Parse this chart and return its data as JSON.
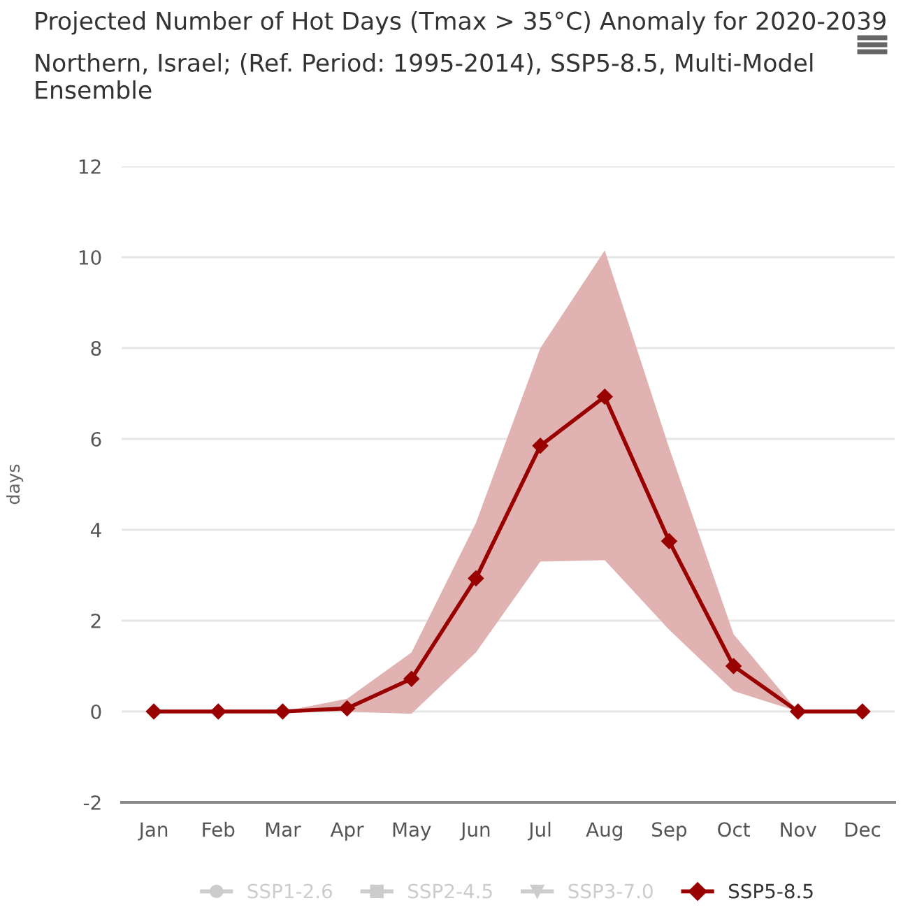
{
  "chart_data": {
    "type": "line",
    "title": "Projected Number of Hot Days (Tmax > 35°C) Anomaly for 2020-2039",
    "subtitle": "Northern, Israel; (Ref. Period: 1995-2014), SSP5-8.5, Multi-Model Ensemble",
    "ylabel": "days",
    "categories": [
      "Jan",
      "Feb",
      "Mar",
      "Apr",
      "May",
      "Jun",
      "Jul",
      "Aug",
      "Sep",
      "Oct",
      "Nov",
      "Dec"
    ],
    "series": [
      {
        "name": "SSP1-2.6",
        "color": "#cccccc",
        "marker": "circle",
        "values": [
          null,
          null,
          null,
          null,
          null,
          null,
          null,
          null,
          null,
          null,
          null,
          null
        ]
      },
      {
        "name": "SSP2-4.5",
        "color": "#cccccc",
        "marker": "square",
        "values": [
          null,
          null,
          null,
          null,
          null,
          null,
          null,
          null,
          null,
          null,
          null,
          null
        ]
      },
      {
        "name": "SSP3-7.0",
        "color": "#cccccc",
        "marker": "triangle",
        "values": [
          null,
          null,
          null,
          null,
          null,
          null,
          null,
          null,
          null,
          null,
          null,
          null
        ]
      },
      {
        "name": "SSP5-8.5",
        "color": "#990000",
        "marker": "diamond",
        "values": [
          0,
          0,
          0,
          0.07,
          0.72,
          2.93,
          5.85,
          6.93,
          3.75,
          1.0,
          0,
          0
        ],
        "lower": [
          null,
          null,
          0,
          0,
          -0.05,
          1.3,
          3.3,
          3.33,
          1.8,
          0.45,
          0,
          null
        ],
        "upper": [
          null,
          null,
          0,
          0.28,
          1.3,
          4.15,
          8.0,
          10.15,
          5.8,
          1.7,
          0,
          null
        ]
      }
    ],
    "ylim": [
      -2,
      12
    ],
    "yticks": [
      -2,
      0,
      2,
      4,
      6,
      8,
      10,
      12
    ],
    "grid": "y",
    "legend": "bottom",
    "line_style": "solid"
  }
}
